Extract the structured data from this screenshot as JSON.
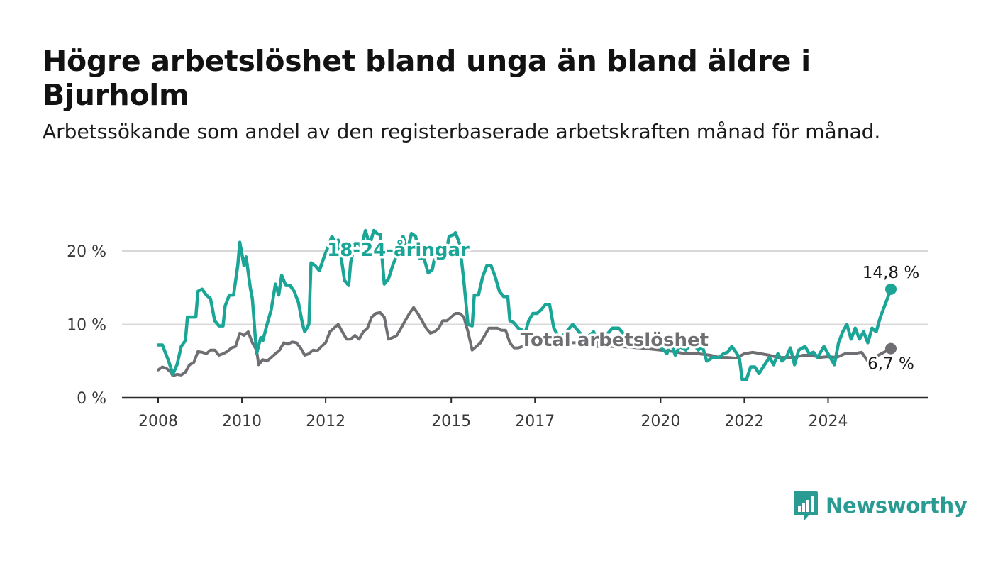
{
  "title": "Högre arbetslöshet bland unga än bland äldre i Bjurholm",
  "subtitle": "Arbetssökande som andel av den registerbaserade arbetskraften månad för månad.",
  "brand": {
    "name": "Newsworthy",
    "color": "#2a9b93",
    "icon": "bar-chart-speech-bubble-icon"
  },
  "chart_data": {
    "type": "line",
    "title": "Högre arbetslöshet bland unga än bland äldre i Bjurholm",
    "subtitle": "Arbetssökande som andel av den registerbaserade arbetskraften månad för månad.",
    "xlabel": "",
    "ylabel": "",
    "x_range": [
      2008.0,
      2025.5
    ],
    "ylim": [
      0,
      23
    ],
    "x_ticks": [
      2008,
      2010,
      2012,
      2015,
      2017,
      2020,
      2022,
      2024
    ],
    "x_tick_labels": [
      "2008",
      "2010",
      "2012",
      "2015",
      "2017",
      "2020",
      "2022",
      "2024"
    ],
    "y_ticks": [
      0,
      10,
      20
    ],
    "y_tick_labels": [
      "0 %",
      "10 %",
      "20 %"
    ],
    "grid": "horizontal",
    "legend": "inline labels",
    "series": [
      {
        "name": "18-24-åringar",
        "color": "#1aa597",
        "label_at": [
          2012.0,
          19.3
        ],
        "end_label": "14,8 %",
        "points": [
          [
            2008.0,
            7.2
          ],
          [
            2008.1,
            7.2
          ],
          [
            2008.25,
            5.0
          ],
          [
            2008.35,
            3.2
          ],
          [
            2008.45,
            4.5
          ],
          [
            2008.55,
            7.0
          ],
          [
            2008.65,
            7.8
          ],
          [
            2008.7,
            11.0
          ],
          [
            2008.9,
            11.0
          ],
          [
            2008.95,
            14.5
          ],
          [
            2009.05,
            14.8
          ],
          [
            2009.15,
            14.0
          ],
          [
            2009.25,
            13.5
          ],
          [
            2009.35,
            10.5
          ],
          [
            2009.45,
            9.8
          ],
          [
            2009.55,
            9.8
          ],
          [
            2009.6,
            12.5
          ],
          [
            2009.7,
            14.0
          ],
          [
            2009.8,
            14.0
          ],
          [
            2009.9,
            18.0
          ],
          [
            2009.95,
            21.2
          ],
          [
            2010.05,
            18.0
          ],
          [
            2010.1,
            19.2
          ],
          [
            2010.2,
            15.0
          ],
          [
            2010.25,
            13.5
          ],
          [
            2010.35,
            6.0
          ],
          [
            2010.45,
            8.2
          ],
          [
            2010.5,
            7.8
          ],
          [
            2010.6,
            10.0
          ],
          [
            2010.7,
            12.0
          ],
          [
            2010.8,
            15.5
          ],
          [
            2010.88,
            14.0
          ],
          [
            2010.95,
            16.7
          ],
          [
            2011.05,
            15.3
          ],
          [
            2011.15,
            15.3
          ],
          [
            2011.25,
            14.5
          ],
          [
            2011.35,
            13.0
          ],
          [
            2011.45,
            10.0
          ],
          [
            2011.5,
            9.0
          ],
          [
            2011.6,
            10.0
          ],
          [
            2011.65,
            18.4
          ],
          [
            2011.75,
            18.0
          ],
          [
            2011.85,
            17.3
          ],
          [
            2011.95,
            19.0
          ],
          [
            2012.05,
            20.5
          ],
          [
            2012.15,
            22.0
          ],
          [
            2012.25,
            21.0
          ],
          [
            2012.3,
            21.5
          ],
          [
            2012.4,
            18.0
          ],
          [
            2012.45,
            16.0
          ],
          [
            2012.55,
            15.3
          ],
          [
            2012.6,
            18.5
          ],
          [
            2012.7,
            21.0
          ],
          [
            2012.8,
            21.0
          ],
          [
            2012.85,
            20.5
          ],
          [
            2012.95,
            22.8
          ],
          [
            2013.05,
            20.8
          ],
          [
            2013.15,
            22.8
          ],
          [
            2013.25,
            22.3
          ],
          [
            2013.3,
            22.3
          ],
          [
            2013.4,
            15.5
          ],
          [
            2013.5,
            16.2
          ],
          [
            2013.6,
            18.0
          ],
          [
            2013.7,
            19.5
          ],
          [
            2013.8,
            20.5
          ],
          [
            2013.85,
            22.0
          ],
          [
            2013.95,
            20.0
          ],
          [
            2014.05,
            22.4
          ],
          [
            2014.15,
            22.0
          ],
          [
            2014.25,
            19.0
          ],
          [
            2014.35,
            19.0
          ],
          [
            2014.45,
            17.0
          ],
          [
            2014.55,
            17.5
          ],
          [
            2014.65,
            20.5
          ],
          [
            2014.75,
            20.2
          ],
          [
            2014.85,
            20.6
          ],
          [
            2014.9,
            20.5
          ],
          [
            2014.95,
            22.0
          ],
          [
            2015.05,
            22.2
          ],
          [
            2015.1,
            22.5
          ],
          [
            2015.2,
            21.0
          ],
          [
            2015.3,
            16.0
          ],
          [
            2015.4,
            10.0
          ],
          [
            2015.5,
            9.8
          ],
          [
            2015.55,
            14.0
          ],
          [
            2015.65,
            14.0
          ],
          [
            2015.75,
            16.5
          ],
          [
            2015.85,
            18.0
          ],
          [
            2015.95,
            18.0
          ],
          [
            2016.05,
            16.5
          ],
          [
            2016.15,
            14.5
          ],
          [
            2016.25,
            13.8
          ],
          [
            2016.35,
            13.8
          ],
          [
            2016.4,
            10.5
          ],
          [
            2016.5,
            10.2
          ],
          [
            2016.6,
            9.5
          ],
          [
            2016.7,
            9.2
          ],
          [
            2016.75,
            8.5
          ],
          [
            2016.85,
            10.5
          ],
          [
            2016.95,
            11.5
          ],
          [
            2017.05,
            11.5
          ],
          [
            2017.15,
            12.0
          ],
          [
            2017.25,
            12.7
          ],
          [
            2017.35,
            12.7
          ],
          [
            2017.45,
            9.5
          ],
          [
            2017.6,
            8.0
          ],
          [
            2017.75,
            9.0
          ],
          [
            2017.9,
            10.0
          ],
          [
            2018.05,
            9.0
          ],
          [
            2018.2,
            8.0
          ],
          [
            2018.4,
            9.0
          ],
          [
            2018.55,
            7.0
          ],
          [
            2018.7,
            8.5
          ],
          [
            2018.85,
            9.5
          ],
          [
            2019.0,
            9.5
          ],
          [
            2019.15,
            8.5
          ],
          [
            2019.3,
            7.5
          ],
          [
            2019.5,
            8.0
          ],
          [
            2019.7,
            7.0
          ],
          [
            2019.85,
            8.0
          ],
          [
            2020.0,
            7.0
          ],
          [
            2020.15,
            6.0
          ],
          [
            2020.25,
            7.5
          ],
          [
            2020.35,
            5.8
          ],
          [
            2020.45,
            7.0
          ],
          [
            2020.6,
            6.5
          ],
          [
            2020.75,
            7.5
          ],
          [
            2020.9,
            6.5
          ],
          [
            2021.0,
            7.0
          ],
          [
            2021.1,
            5.0
          ],
          [
            2021.25,
            5.5
          ],
          [
            2021.4,
            5.5
          ],
          [
            2021.5,
            6.0
          ],
          [
            2021.6,
            6.2
          ],
          [
            2021.7,
            7.0
          ],
          [
            2021.8,
            6.2
          ],
          [
            2021.88,
            5.5
          ],
          [
            2021.95,
            2.5
          ],
          [
            2022.05,
            2.5
          ],
          [
            2022.15,
            4.2
          ],
          [
            2022.25,
            4.2
          ],
          [
            2022.35,
            3.3
          ],
          [
            2022.45,
            4.2
          ],
          [
            2022.6,
            5.5
          ],
          [
            2022.7,
            4.5
          ],
          [
            2022.8,
            6.0
          ],
          [
            2022.9,
            5.0
          ],
          [
            2023.0,
            5.5
          ],
          [
            2023.1,
            6.8
          ],
          [
            2023.2,
            4.5
          ],
          [
            2023.3,
            6.5
          ],
          [
            2023.45,
            7.0
          ],
          [
            2023.55,
            6.0
          ],
          [
            2023.65,
            6.2
          ],
          [
            2023.75,
            5.5
          ],
          [
            2023.9,
            7.0
          ],
          [
            2024.05,
            5.5
          ],
          [
            2024.15,
            4.5
          ],
          [
            2024.25,
            7.5
          ],
          [
            2024.35,
            9.0
          ],
          [
            2024.45,
            10.0
          ],
          [
            2024.55,
            8.0
          ],
          [
            2024.65,
            9.5
          ],
          [
            2024.75,
            8.0
          ],
          [
            2024.85,
            9.0
          ],
          [
            2024.95,
            7.5
          ],
          [
            2025.05,
            9.5
          ],
          [
            2025.15,
            9.0
          ],
          [
            2025.25,
            11.0
          ],
          [
            2025.35,
            12.5
          ],
          [
            2025.5,
            14.8
          ]
        ]
      },
      {
        "name": "Total arbetslöshet",
        "color": "#6e6e73",
        "label_at": [
          2018.9,
          8.0
        ],
        "end_label": "6,7 %",
        "points": [
          [
            2008.0,
            3.8
          ],
          [
            2008.1,
            4.2
          ],
          [
            2008.2,
            4.0
          ],
          [
            2008.3,
            3.5
          ],
          [
            2008.35,
            3.0
          ],
          [
            2008.45,
            3.2
          ],
          [
            2008.55,
            3.1
          ],
          [
            2008.65,
            3.5
          ],
          [
            2008.75,
            4.5
          ],
          [
            2008.85,
            4.8
          ],
          [
            2008.95,
            6.3
          ],
          [
            2009.05,
            6.2
          ],
          [
            2009.15,
            6.0
          ],
          [
            2009.25,
            6.5
          ],
          [
            2009.35,
            6.5
          ],
          [
            2009.45,
            5.8
          ],
          [
            2009.55,
            6.0
          ],
          [
            2009.65,
            6.3
          ],
          [
            2009.75,
            6.8
          ],
          [
            2009.85,
            7.0
          ],
          [
            2009.95,
            8.8
          ],
          [
            2010.05,
            8.5
          ],
          [
            2010.15,
            9.0
          ],
          [
            2010.25,
            7.5
          ],
          [
            2010.35,
            6.5
          ],
          [
            2010.4,
            4.5
          ],
          [
            2010.5,
            5.2
          ],
          [
            2010.6,
            5.0
          ],
          [
            2010.7,
            5.5
          ],
          [
            2010.8,
            6.0
          ],
          [
            2010.9,
            6.5
          ],
          [
            2011.0,
            7.5
          ],
          [
            2011.1,
            7.3
          ],
          [
            2011.2,
            7.6
          ],
          [
            2011.3,
            7.5
          ],
          [
            2011.4,
            6.8
          ],
          [
            2011.5,
            5.8
          ],
          [
            2011.6,
            6.0
          ],
          [
            2011.7,
            6.5
          ],
          [
            2011.8,
            6.4
          ],
          [
            2011.9,
            7.0
          ],
          [
            2012.0,
            7.5
          ],
          [
            2012.1,
            9.0
          ],
          [
            2012.2,
            9.5
          ],
          [
            2012.3,
            10.0
          ],
          [
            2012.4,
            9.0
          ],
          [
            2012.5,
            8.0
          ],
          [
            2012.6,
            8.0
          ],
          [
            2012.7,
            8.5
          ],
          [
            2012.8,
            8.0
          ],
          [
            2012.9,
            9.0
          ],
          [
            2013.0,
            9.5
          ],
          [
            2013.1,
            11.0
          ],
          [
            2013.2,
            11.5
          ],
          [
            2013.3,
            11.6
          ],
          [
            2013.4,
            11.0
          ],
          [
            2013.5,
            8.0
          ],
          [
            2013.6,
            8.2
          ],
          [
            2013.7,
            8.5
          ],
          [
            2013.8,
            9.5
          ],
          [
            2013.9,
            10.5
          ],
          [
            2014.0,
            11.5
          ],
          [
            2014.1,
            12.3
          ],
          [
            2014.2,
            11.5
          ],
          [
            2014.3,
            10.5
          ],
          [
            2014.4,
            9.5
          ],
          [
            2014.5,
            8.8
          ],
          [
            2014.6,
            9.0
          ],
          [
            2014.7,
            9.5
          ],
          [
            2014.8,
            10.5
          ],
          [
            2014.9,
            10.5
          ],
          [
            2015.0,
            11.0
          ],
          [
            2015.1,
            11.5
          ],
          [
            2015.2,
            11.5
          ],
          [
            2015.3,
            11.0
          ],
          [
            2015.4,
            9.0
          ],
          [
            2015.5,
            6.5
          ],
          [
            2015.6,
            7.0
          ],
          [
            2015.7,
            7.5
          ],
          [
            2015.8,
            8.5
          ],
          [
            2015.9,
            9.5
          ],
          [
            2016.0,
            9.5
          ],
          [
            2016.1,
            9.5
          ],
          [
            2016.2,
            9.2
          ],
          [
            2016.3,
            9.2
          ],
          [
            2016.4,
            7.5
          ],
          [
            2016.5,
            6.8
          ],
          [
            2016.6,
            6.8
          ],
          [
            2016.7,
            7.0
          ],
          [
            2016.8,
            7.5
          ],
          [
            2016.9,
            7.5
          ],
          [
            2017.0,
            8.2
          ],
          [
            2017.2,
            7.5
          ],
          [
            2017.4,
            7.0
          ],
          [
            2017.6,
            7.5
          ],
          [
            2018.0,
            7.5
          ],
          [
            2018.5,
            7.0
          ],
          [
            2019.0,
            7.0
          ],
          [
            2019.5,
            6.8
          ],
          [
            2020.0,
            6.5
          ],
          [
            2020.3,
            6.3
          ],
          [
            2020.6,
            6.0
          ],
          [
            2020.9,
            6.0
          ],
          [
            2021.2,
            5.8
          ],
          [
            2021.4,
            5.5
          ],
          [
            2021.6,
            5.5
          ],
          [
            2021.8,
            5.4
          ],
          [
            2022.0,
            6.0
          ],
          [
            2022.2,
            6.2
          ],
          [
            2022.4,
            6.0
          ],
          [
            2022.6,
            5.8
          ],
          [
            2022.8,
            5.5
          ],
          [
            2023.0,
            5.5
          ],
          [
            2023.2,
            5.5
          ],
          [
            2023.4,
            5.8
          ],
          [
            2023.6,
            5.8
          ],
          [
            2023.8,
            5.5
          ],
          [
            2024.0,
            5.6
          ],
          [
            2024.2,
            5.5
          ],
          [
            2024.4,
            6.0
          ],
          [
            2024.6,
            6.0
          ],
          [
            2024.8,
            6.2
          ],
          [
            2024.95,
            5.0
          ],
          [
            2025.2,
            5.8
          ],
          [
            2025.5,
            6.7
          ]
        ]
      }
    ]
  }
}
